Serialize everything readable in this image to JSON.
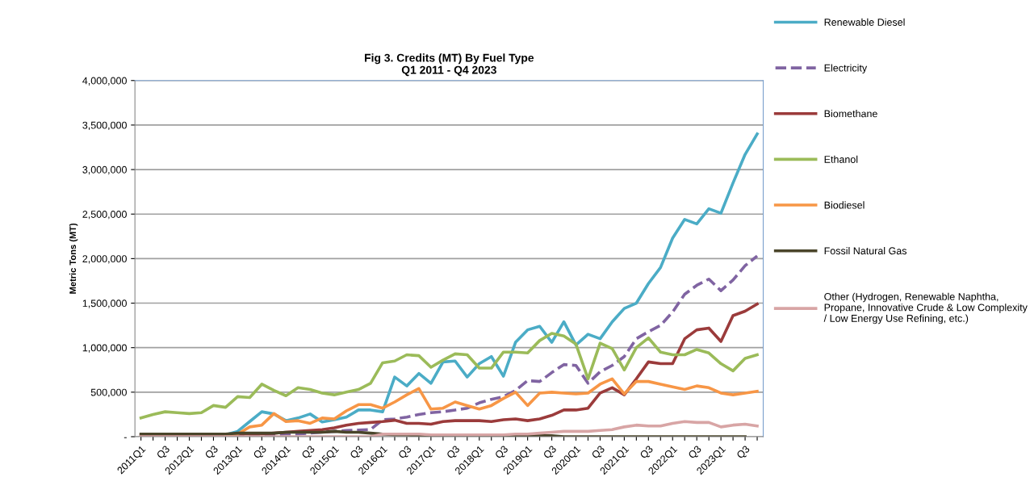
{
  "chart_data": {
    "type": "line",
    "title": "Fig 3. Credits (MT) By Fuel Type\nQ1 2011 - Q4 2023",
    "ylabel": "Metric Tons (MT)",
    "categories": [
      "2011Q1",
      null,
      "Q3",
      null,
      "2012Q1",
      null,
      "Q3",
      null,
      "2013Q1",
      null,
      "Q3",
      null,
      "2014Q1",
      null,
      "Q3",
      null,
      "2015Q1",
      null,
      "Q3",
      null,
      "2016Q1",
      null,
      "Q3",
      null,
      "2017Q1",
      null,
      "Q3",
      null,
      "2018Q1",
      null,
      "Q3",
      null,
      "2019Q1",
      null,
      "Q3",
      null,
      "2020Q1",
      null,
      "Q3",
      null,
      "2021Q1",
      null,
      "Q3",
      null,
      "2022Q1",
      null,
      "Q3",
      null,
      "2023Q1",
      null,
      "Q3",
      null
    ],
    "ylim": [
      0,
      4000000
    ],
    "yticks": [
      {
        "value": 0,
        "label": "-"
      },
      {
        "value": 500000,
        "label": "500,000"
      },
      {
        "value": 1000000,
        "label": "1,000,000"
      },
      {
        "value": 1500000,
        "label": "1,500,000"
      },
      {
        "value": 2000000,
        "label": "2,000,000"
      },
      {
        "value": 2500000,
        "label": "2,500,000"
      },
      {
        "value": 3000000,
        "label": "3,000,000"
      },
      {
        "value": 3500000,
        "label": "3,500,000"
      },
      {
        "value": 4000000,
        "label": "4,000,000"
      }
    ],
    "grid": "y",
    "legend": "right",
    "marker": "none",
    "series": [
      {
        "name": "Renewable Diesel",
        "color": "#4bacc6",
        "line_style": "solid",
        "values": [
          null,
          null,
          null,
          null,
          null,
          null,
          10000,
          20000,
          60000,
          170000,
          280000,
          255000,
          180000,
          210000,
          255000,
          165000,
          190000,
          220000,
          300000,
          300000,
          280000,
          670000,
          570000,
          710000,
          600000,
          840000,
          850000,
          670000,
          820000,
          900000,
          680000,
          1060000,
          1200000,
          1240000,
          1060000,
          1290000,
          1030000,
          1150000,
          1100000,
          1290000,
          1440000,
          1500000,
          1720000,
          1900000,
          2230000,
          2440000,
          2390000,
          2560000,
          2510000,
          2850000,
          3170000,
          3400000
        ]
      },
      {
        "name": "Electricity",
        "color": "#8064a2",
        "line_style": "dashed",
        "values": [
          0,
          0,
          0,
          0,
          0,
          0,
          0,
          0,
          10000,
          10000,
          20000,
          20000,
          30000,
          30000,
          40000,
          50000,
          60000,
          70000,
          75000,
          80000,
          190000,
          200000,
          220000,
          250000,
          270000,
          280000,
          300000,
          320000,
          380000,
          420000,
          450000,
          520000,
          630000,
          620000,
          720000,
          810000,
          800000,
          600000,
          730000,
          800000,
          900000,
          1100000,
          1180000,
          1250000,
          1400000,
          1600000,
          1700000,
          1770000,
          1640000,
          1760000,
          1920000,
          2030000
        ]
      },
      {
        "name": "Biomethane",
        "color": "#9b3b3b",
        "line_style": "solid",
        "values": [
          20000,
          20000,
          20000,
          20000,
          20000,
          20000,
          20000,
          20000,
          30000,
          30000,
          30000,
          40000,
          50000,
          60000,
          70000,
          80000,
          100000,
          130000,
          150000,
          160000,
          170000,
          185000,
          150000,
          150000,
          140000,
          170000,
          180000,
          180000,
          180000,
          170000,
          190000,
          200000,
          180000,
          200000,
          240000,
          300000,
          300000,
          320000,
          490000,
          550000,
          470000,
          650000,
          840000,
          820000,
          820000,
          1100000,
          1200000,
          1220000,
          1070000,
          1360000,
          1410000,
          1490000
        ]
      },
      {
        "name": "Ethanol",
        "color": "#9bbb59",
        "line_style": "solid",
        "values": [
          210000,
          250000,
          280000,
          270000,
          260000,
          270000,
          350000,
          330000,
          450000,
          440000,
          590000,
          520000,
          460000,
          550000,
          530000,
          490000,
          470000,
          500000,
          530000,
          600000,
          830000,
          850000,
          920000,
          910000,
          780000,
          860000,
          930000,
          920000,
          770000,
          770000,
          950000,
          950000,
          940000,
          1080000,
          1160000,
          1130000,
          1040000,
          650000,
          1050000,
          990000,
          750000,
          1000000,
          1110000,
          950000,
          920000,
          920000,
          980000,
          940000,
          820000,
          740000,
          880000,
          920000
        ]
      },
      {
        "name": "Biodiesel",
        "color": "#f79646",
        "line_style": "solid",
        "values": [
          null,
          null,
          null,
          null,
          null,
          null,
          null,
          20000,
          30000,
          110000,
          130000,
          260000,
          170000,
          180000,
          150000,
          210000,
          200000,
          290000,
          360000,
          360000,
          320000,
          390000,
          470000,
          540000,
          310000,
          320000,
          390000,
          350000,
          310000,
          350000,
          430000,
          500000,
          350000,
          490000,
          500000,
          490000,
          480000,
          490000,
          590000,
          650000,
          480000,
          620000,
          620000,
          590000,
          560000,
          530000,
          570000,
          550000,
          490000,
          470000,
          490000,
          510000
        ]
      },
      {
        "name": "Fossil Natural Gas",
        "color": "#4a452a",
        "line_style": "solid",
        "values": [
          30000,
          30000,
          30000,
          30000,
          30000,
          30000,
          30000,
          30000,
          40000,
          40000,
          40000,
          40000,
          50000,
          50000,
          50000,
          50000,
          60000,
          50000,
          50000,
          40000,
          30000,
          20000,
          20000,
          10000,
          10000,
          10000,
          10000,
          10000,
          10000,
          10000,
          10000,
          10000,
          10000,
          10000,
          10000,
          0,
          0,
          0,
          0,
          0,
          0,
          0,
          0,
          0,
          0,
          0,
          0,
          0,
          0,
          0,
          0,
          null
        ]
      },
      {
        "name": "Other (Hydrogen, Renewable Naphtha,\nPropane, Innovative Crude & Low Complexity\n/ Low Energy Use Refining, etc.)",
        "color": "#d8a5a5",
        "line_style": "solid",
        "values": [
          0,
          0,
          0,
          0,
          0,
          0,
          0,
          0,
          0,
          0,
          0,
          0,
          0,
          0,
          0,
          0,
          0,
          0,
          0,
          0,
          30000,
          30000,
          30000,
          30000,
          20000,
          20000,
          20000,
          20000,
          20000,
          20000,
          20000,
          30000,
          30000,
          40000,
          50000,
          60000,
          60000,
          60000,
          70000,
          80000,
          110000,
          130000,
          120000,
          120000,
          150000,
          170000,
          160000,
          160000,
          110000,
          130000,
          140000,
          120000
        ]
      }
    ]
  }
}
